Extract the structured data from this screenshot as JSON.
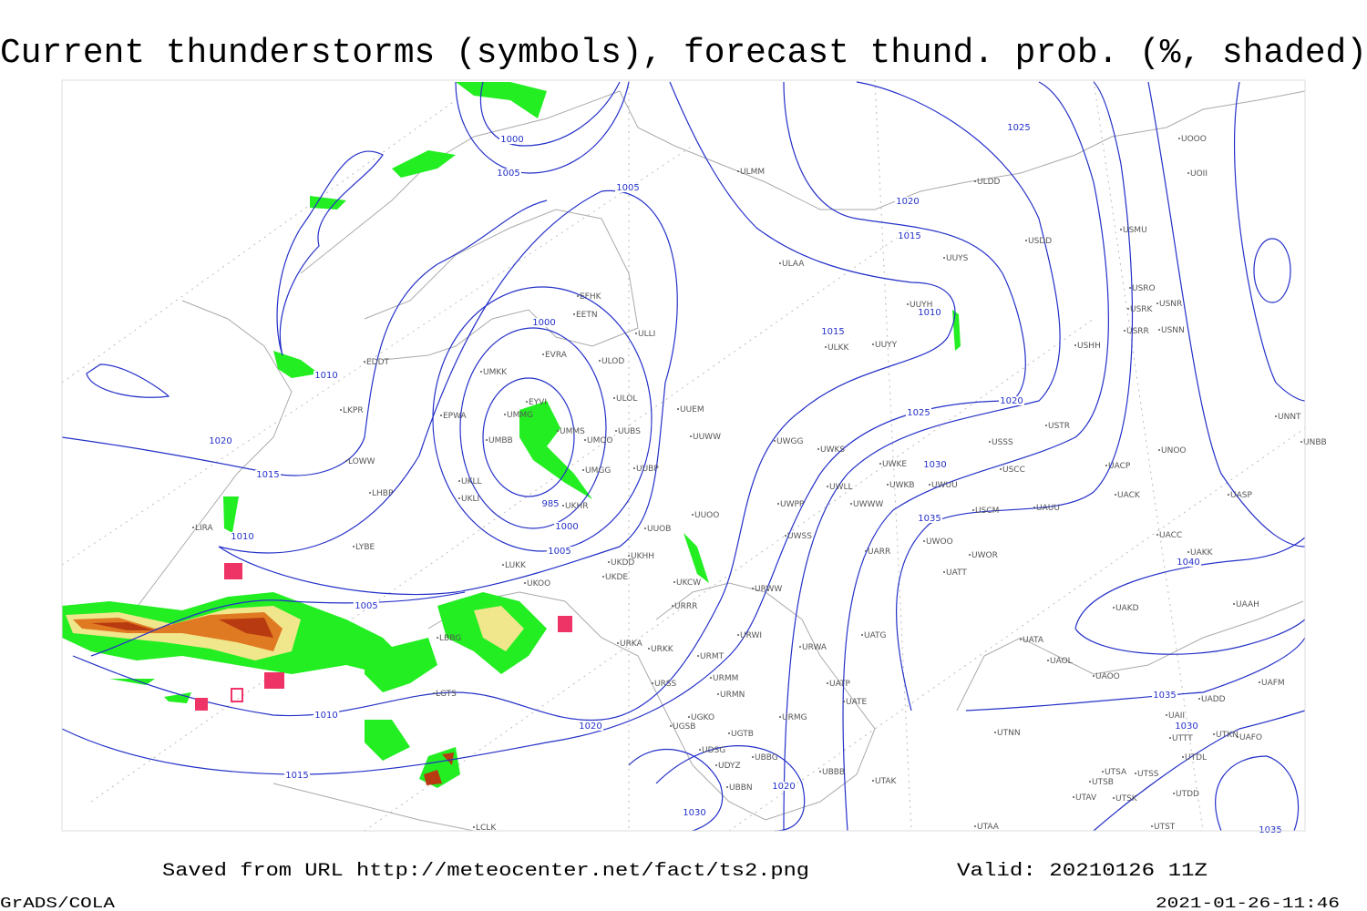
{
  "header": {
    "title": "Current thunderstorms (symbols), forecast thund. prob. (%, shaded)"
  },
  "map": {
    "isobar_labels": [
      1000,
      1005,
      1005,
      1025,
      1020,
      1015,
      1010,
      1015,
      1000,
      1010,
      1020,
      1015,
      1020,
      1025,
      1030,
      985,
      1000,
      1005,
      1010,
      1035,
      1040,
      1005,
      1010,
      1020,
      1035,
      1030,
      1015,
      1020,
      1030,
      1035
    ],
    "stations": [
      "ULMM",
      "ULDD",
      "USDD",
      "USMU",
      "ULAA",
      "UUYS",
      "UUYH",
      "USRO",
      "USRK",
      "USNR",
      "USRR",
      "USNN",
      "EFHK",
      "EETN",
      "ULLI",
      "ULKK",
      "UUYY",
      "USHH",
      "EVRA",
      "ULOD",
      "EDDT",
      "UMKK",
      "ULOL",
      "UUEM",
      "EYVI",
      "UMMG",
      "EPWA",
      "UMMS",
      "UMOO",
      "UUBS",
      "UUWW",
      "UMBB",
      "UWGG",
      "UWKS",
      "USTR",
      "USSS",
      "UNOO",
      "UNNT",
      "UNBB",
      "LKPR",
      "LOWW",
      "UMGG",
      "UUBP",
      "UKLL",
      "UKLI",
      "LHBP",
      "UWKE",
      "UWKB",
      "UWUU",
      "USCC",
      "UACP",
      "UACK",
      "UASP",
      "UWLL",
      "UWWW",
      "UWPP",
      "UUOO",
      "UKHR",
      "USCM",
      "UAUU",
      "LIRA",
      "UUOB",
      "LYBE",
      "UWSS",
      "UACC",
      "UAKK",
      "UWOO",
      "UWOR",
      "UARR",
      "UATT",
      "UKHH",
      "UKDD",
      "LUKK",
      "UKOO",
      "UKDE",
      "UKCW",
      "URWW",
      "UAKD",
      "UAAH",
      "URRR",
      "LBBG",
      "URWI",
      "URKA",
      "URKK",
      "UATG",
      "URWA",
      "UATA",
      "UAOL",
      "URMT",
      "URMM",
      "URSS",
      "UATP",
      "URMN",
      "UATE",
      "UAOO",
      "UAFM",
      "UADD",
      "LGTS",
      "UGKO",
      "URMG",
      "UGSB",
      "UAII",
      "UGTB",
      "UTNN",
      "UTKN",
      "UAFO",
      "UTTT",
      "UDSG",
      "UBBG",
      "UDYZ",
      "UTDL",
      "UBBB",
      "UTSA",
      "UTSS",
      "UTSB",
      "UTAK",
      "UBBN",
      "UTAV",
      "UTSK",
      "UTDD",
      "LCLK",
      "UTAA",
      "UTST",
      "UOOO",
      "UOII"
    ]
  },
  "footer": {
    "source": "Saved from URL http://meteocenter.net/fact/ts2.png",
    "valid": "Valid: 20210126 11Z",
    "credit": "GrADS/COLA",
    "timestamp": "2021-01-26-11:46"
  }
}
